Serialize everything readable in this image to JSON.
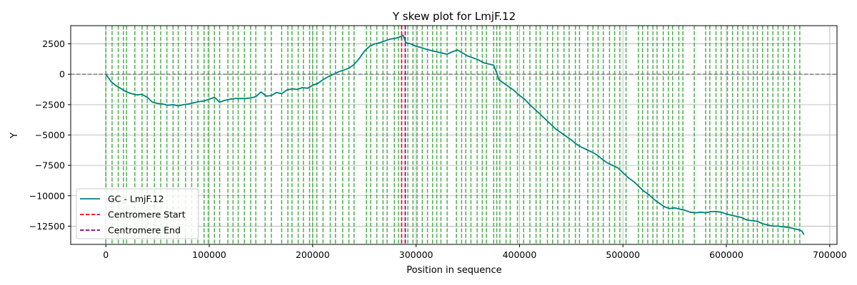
{
  "chart_data": {
    "type": "line",
    "title": "Y skew plot for LmjF.12",
    "xlabel": "Position in sequence",
    "ylabel": "Y",
    "xlim": [
      -34000,
      707000
    ],
    "ylim": [
      -14000,
      4000
    ],
    "grid": true,
    "legend_position": "lower-left",
    "x_ticks": [
      0,
      100000,
      200000,
      300000,
      400000,
      500000,
      600000,
      700000
    ],
    "x_tick_labels": [
      "0",
      "100000",
      "200000",
      "300000",
      "400000",
      "500000",
      "600000",
      "700000"
    ],
    "y_ticks": [
      2500,
      0,
      -2500,
      -5000,
      -7500,
      -10000,
      -12500
    ],
    "y_tick_labels": [
      "2500",
      "0",
      "−2500",
      "−5000",
      "−7500",
      "−10000",
      "−12500"
    ],
    "series": [
      {
        "name": "GC - LmjF.12",
        "color": "#008080",
        "x": [
          0,
          5000,
          10000,
          15000,
          20000,
          25000,
          30000,
          35000,
          40000,
          45000,
          50000,
          55000,
          60000,
          65000,
          70000,
          75000,
          80000,
          85000,
          90000,
          95000,
          100000,
          105000,
          110000,
          115000,
          120000,
          125000,
          130000,
          135000,
          140000,
          145000,
          150000,
          155000,
          160000,
          165000,
          170000,
          175000,
          180000,
          185000,
          190000,
          195000,
          200000,
          205000,
          210000,
          215000,
          220000,
          225000,
          230000,
          235000,
          240000,
          245000,
          250000,
          255000,
          260000,
          265000,
          270000,
          275000,
          280000,
          285000,
          287500,
          290000,
          295000,
          300000,
          305000,
          310000,
          315000,
          320000,
          325000,
          330000,
          335000,
          340000,
          345000,
          350000,
          355000,
          360000,
          365000,
          370000,
          375000,
          378000,
          380000,
          385000,
          390000,
          395000,
          400000,
          405000,
          410000,
          415000,
          420000,
          425000,
          430000,
          435000,
          440000,
          445000,
          450000,
          455000,
          460000,
          465000,
          470000,
          475000,
          480000,
          485000,
          490000,
          495000,
          500000,
          505000,
          510000,
          515000,
          520000,
          525000,
          530000,
          535000,
          540000,
          545000,
          550000,
          555000,
          560000,
          565000,
          570000,
          575000,
          580000,
          585000,
          590000,
          595000,
          600000,
          605000,
          610000,
          615000,
          620000,
          625000,
          630000,
          635000,
          640000,
          645000,
          650000,
          655000,
          660000,
          665000,
          670000,
          673000,
          675000
        ],
        "y": [
          0,
          -600,
          -950,
          -1200,
          -1450,
          -1600,
          -1700,
          -1650,
          -1900,
          -2300,
          -2400,
          -2450,
          -2550,
          -2500,
          -2600,
          -2500,
          -2450,
          -2350,
          -2250,
          -2200,
          -2050,
          -1900,
          -2300,
          -2150,
          -2050,
          -2000,
          -2000,
          -2000,
          -1950,
          -1850,
          -1450,
          -1800,
          -1750,
          -1500,
          -1600,
          -1300,
          -1200,
          -1250,
          -1100,
          -1150,
          -900,
          -750,
          -450,
          -200,
          0,
          200,
          350,
          500,
          800,
          1300,
          1900,
          2300,
          2500,
          2600,
          2750,
          2900,
          2950,
          3100,
          3200,
          2600,
          2500,
          2300,
          2200,
          2050,
          1950,
          1850,
          1750,
          1650,
          1850,
          2000,
          1750,
          1500,
          1350,
          1200,
          950,
          850,
          750,
          100,
          -450,
          -750,
          -1050,
          -1350,
          -1750,
          -2050,
          -2500,
          -2900,
          -3300,
          -3700,
          -4100,
          -4500,
          -4800,
          -5100,
          -5400,
          -5750,
          -6000,
          -6200,
          -6400,
          -6650,
          -7000,
          -7300,
          -7500,
          -7700,
          -8100,
          -8500,
          -8800,
          -9200,
          -9600,
          -9900,
          -10300,
          -10600,
          -10900,
          -11050,
          -11000,
          -11100,
          -11200,
          -11350,
          -11400,
          -11350,
          -11400,
          -11300,
          -11300,
          -11350,
          -11500,
          -11600,
          -11700,
          -11800,
          -12000,
          -12050,
          -12100,
          -12300,
          -12400,
          -12500,
          -12500,
          -12550,
          -12600,
          -12700,
          -12800,
          -12900,
          -13200
        ]
      },
      {
        "name": "Centromere Start",
        "color": "#ff0000",
        "x_value": 286000,
        "style": "dashed"
      },
      {
        "name": "Centromere End",
        "color": "#800080",
        "x_value": 289500,
        "style": "dashed"
      }
    ],
    "reference_line": {
      "y_value": 0,
      "color": "#808080",
      "style": "dashed"
    },
    "marker_lines": {
      "color": "#2ca02c",
      "style": "dashed",
      "x_values": [
        0,
        6000,
        12000,
        17000,
        20000,
        28000,
        35000,
        40000,
        47000,
        53000,
        59000,
        65000,
        70000,
        77000,
        83000,
        89000,
        95000,
        99000,
        105000,
        110000,
        118000,
        123000,
        128000,
        134000,
        140000,
        145000,
        154000,
        160000,
        170000,
        176000,
        180000,
        186000,
        191000,
        197000,
        200000,
        204000,
        210000,
        217000,
        222000,
        229000,
        235000,
        240000,
        252000,
        256000,
        262000,
        268000,
        272000,
        279000,
        283000,
        292000,
        297000,
        301000,
        306000,
        311000,
        316000,
        320000,
        324000,
        330000,
        339000,
        344000,
        348000,
        353000,
        359000,
        364000,
        368000,
        375000,
        378000,
        381000,
        387000,
        391000,
        398000,
        404000,
        410000,
        416000,
        420000,
        427000,
        432000,
        437000,
        443000,
        448000,
        454000,
        458000,
        466000,
        471000,
        476000,
        481000,
        487000,
        492000,
        497000,
        503000,
        515000,
        519000,
        524000,
        529000,
        533000,
        539000,
        544000,
        548000,
        554000,
        558000,
        569000,
        580000,
        584000,
        590000,
        595000,
        601000,
        606000,
        611000,
        616000,
        621000,
        626000,
        630000,
        635000,
        640000,
        645000,
        650000,
        655000,
        660000,
        666000,
        671000
      ]
    }
  }
}
